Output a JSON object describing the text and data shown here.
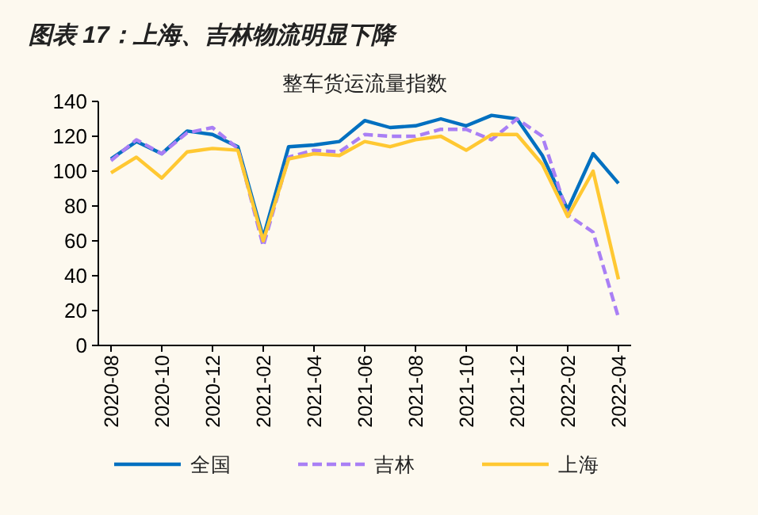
{
  "chart_data": {
    "type": "line",
    "title": "图表 17：上海、吉林物流明显下降",
    "subtitle": "整车货运流量指数",
    "categories": [
      "2020-08",
      null,
      "2020-10",
      null,
      "2020-12",
      null,
      "2021-02",
      null,
      "2021-04",
      null,
      "2021-06",
      null,
      "2021-08",
      null,
      "2021-10",
      null,
      "2021-12",
      null,
      "2022-02",
      null,
      "2022-04"
    ],
    "series": [
      {
        "name": "全国",
        "color": "#0070c0",
        "line_style": "solid",
        "values": [
          107,
          117,
          110,
          123,
          121,
          114,
          62,
          114,
          115,
          117,
          129,
          125,
          126,
          130,
          126,
          132,
          130,
          109,
          78,
          110,
          93
        ]
      },
      {
        "name": "吉林",
        "color": "#a97ff5",
        "line_style": "dashed",
        "values": [
          106,
          118,
          110,
          122,
          125,
          113,
          57,
          108,
          112,
          111,
          121,
          120,
          120,
          124,
          124,
          118,
          130,
          120,
          75,
          65,
          16
        ]
      },
      {
        "name": "上海",
        "color": "#ffc832",
        "line_style": "solid",
        "values": [
          99,
          108,
          96,
          111,
          113,
          112,
          60,
          107,
          110,
          109,
          117,
          114,
          118,
          120,
          112,
          121,
          121,
          104,
          74,
          100,
          38
        ]
      }
    ],
    "ylim": [
      0,
      140
    ],
    "yticks": [
      0,
      20,
      40,
      60,
      80,
      100,
      120,
      140
    ],
    "legend": "bottom"
  }
}
